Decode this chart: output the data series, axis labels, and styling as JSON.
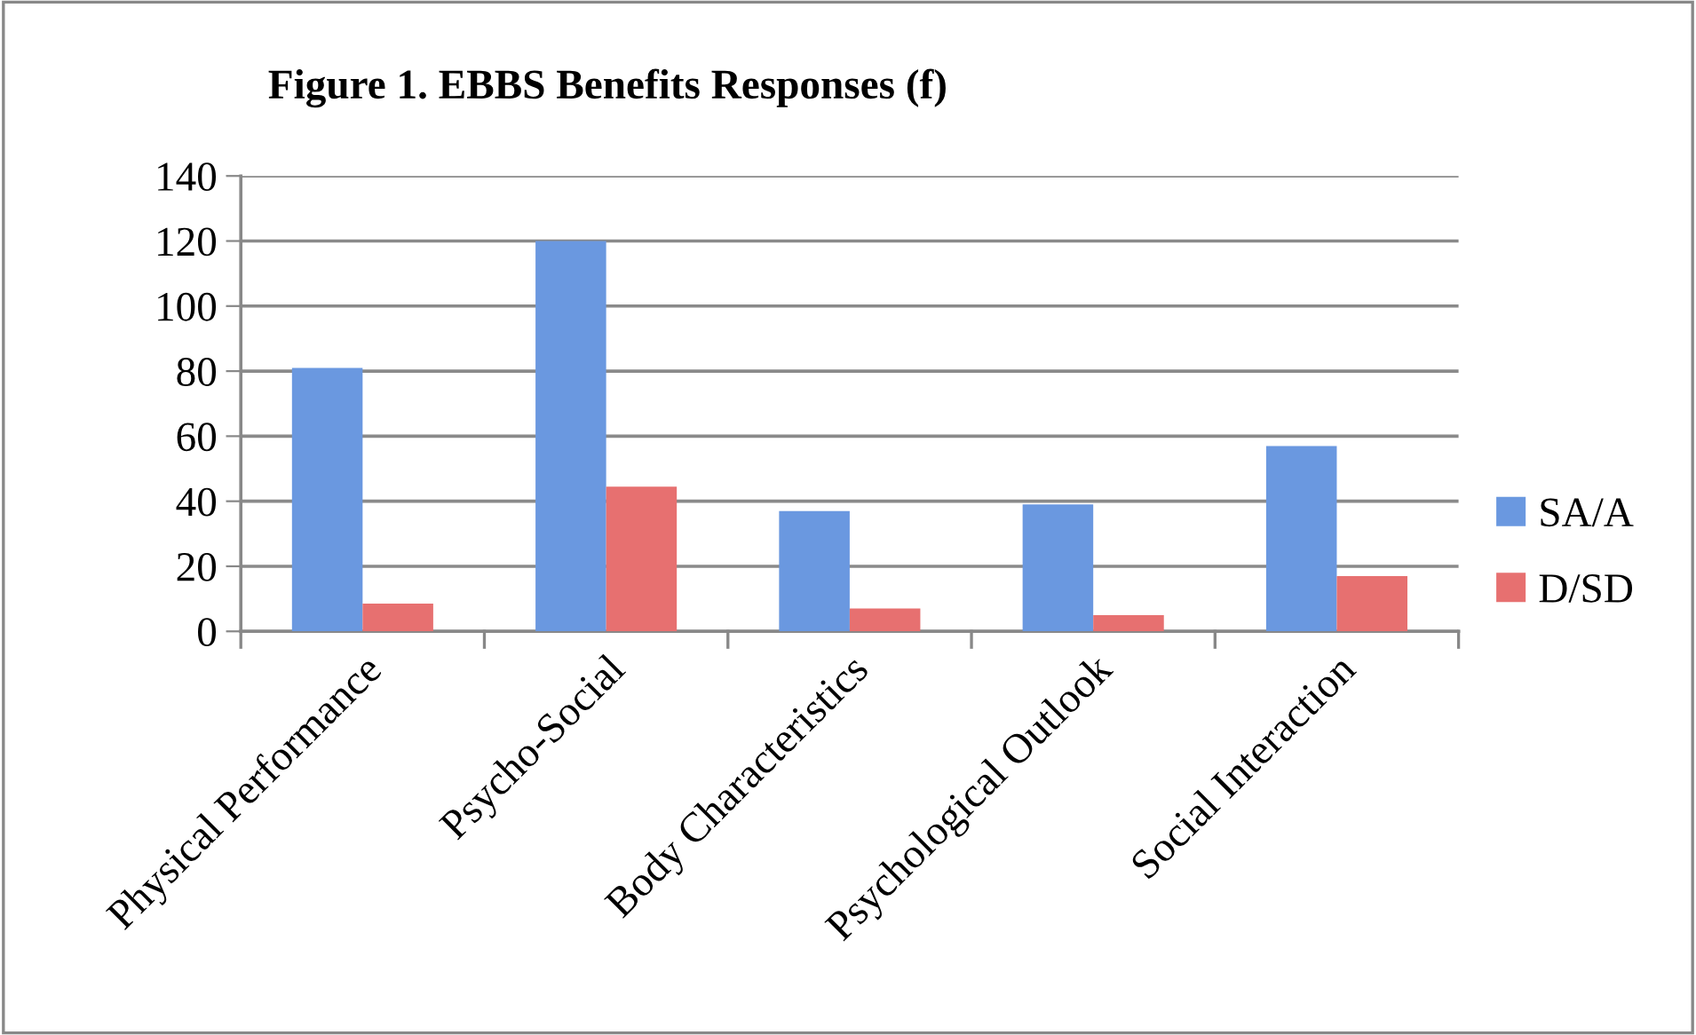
{
  "chart_data": {
    "type": "bar",
    "title": "Figure 1. EBBS Benefits Responses (f)",
    "categories": [
      "Physical Performance",
      "Psycho-Social",
      "Body Characteristics",
      "Psychological Outlook",
      "Social Interaction"
    ],
    "series": [
      {
        "name": "SA/A",
        "color": "#6a98e0",
        "values": [
          81,
          120,
          37,
          39,
          57
        ]
      },
      {
        "name": "D/SD",
        "color": "#e77070",
        "values": [
          8.5,
          44.5,
          7,
          5,
          17
        ]
      }
    ],
    "ylim": [
      0,
      140
    ],
    "yticks": [
      0,
      20,
      40,
      60,
      80,
      100,
      120,
      140
    ],
    "grid": "y",
    "legend": "right"
  }
}
